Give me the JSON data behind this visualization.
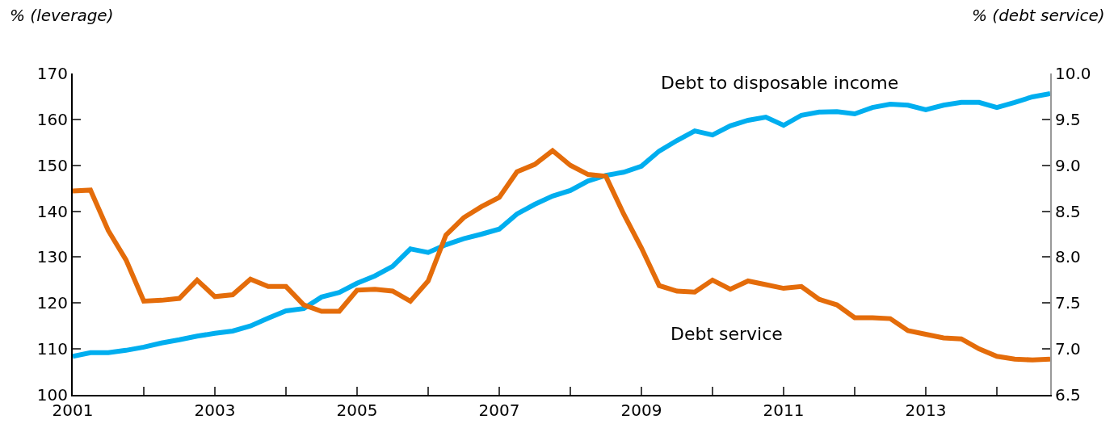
{
  "chart_data": {
    "type": "line",
    "ylabel": "% (leverage)",
    "y2label": "% (debt service)",
    "x": [
      2001,
      2001.25,
      2001.5,
      2001.75,
      2002,
      2002.25,
      2002.5,
      2002.75,
      2003,
      2003.25,
      2003.5,
      2003.75,
      2004,
      2004.25,
      2004.5,
      2004.75,
      2005,
      2005.25,
      2005.5,
      2005.75,
      2006,
      2006.25,
      2006.5,
      2006.75,
      2007,
      2007.25,
      2007.5,
      2007.75,
      2008,
      2008.25,
      2008.5,
      2008.75,
      2009,
      2009.25,
      2009.5,
      2009.75,
      2010,
      2010.25,
      2010.5,
      2010.75,
      2011,
      2011.25,
      2011.5,
      2011.75,
      2012,
      2012.25,
      2012.5,
      2012.75,
      2013,
      2013.25,
      2013.5,
      2013.75,
      2014,
      2014.25,
      2014.5,
      2014.75
    ],
    "series": [
      {
        "name": "Debt to disposable income",
        "color": "#00aeef",
        "values": [
          108.4,
          109.2,
          109.2,
          109.7,
          110.4,
          111.3,
          112.0,
          112.8,
          113.4,
          113.9,
          115.0,
          116.7,
          118.3,
          118.8,
          121.3,
          122.3,
          124.3,
          125.9,
          128.0,
          131.8,
          131.0,
          132.7,
          134.0,
          135.0,
          136.1,
          139.4,
          141.5,
          143.3,
          144.5,
          146.6,
          147.8,
          148.5,
          149.8,
          153.1,
          155.4,
          157.5,
          156.6,
          158.6,
          159.8,
          160.5,
          158.7,
          160.9,
          161.6,
          161.7,
          161.2,
          162.6,
          163.3,
          163.1,
          162.1,
          163.1,
          163.7,
          163.7,
          162.6,
          163.7,
          164.9,
          165.6
        ]
      },
      {
        "name": "Debt service",
        "color": "#e46c0a",
        "axis": "y2",
        "values": [
          8.72,
          8.73,
          8.29,
          7.97,
          7.52,
          7.53,
          7.55,
          7.75,
          7.57,
          7.59,
          7.76,
          7.68,
          7.68,
          7.48,
          7.41,
          7.41,
          7.64,
          7.65,
          7.63,
          7.52,
          7.74,
          8.24,
          8.43,
          8.55,
          8.65,
          8.93,
          9.01,
          9.16,
          9.0,
          8.9,
          8.88,
          8.47,
          8.1,
          7.69,
          7.63,
          7.62,
          7.75,
          7.65,
          7.74,
          7.7,
          7.66,
          7.68,
          7.54,
          7.48,
          7.34,
          7.34,
          7.33,
          7.2,
          7.16,
          7.12,
          7.11,
          7.0,
          6.92,
          6.89,
          6.88,
          6.89
        ]
      }
    ],
    "xlim": [
      2001,
      2014.75
    ],
    "xticks": [
      2001,
      {
        "value": 2002,
        "label": null
      },
      2003,
      {
        "value": 2004,
        "label": null
      },
      2005,
      {
        "value": 2006,
        "label": null
      },
      2007,
      {
        "value": 2008,
        "label": null
      },
      2009,
      {
        "value": 2010,
        "label": null
      },
      2011,
      {
        "value": 2012,
        "label": null
      },
      2013,
      {
        "value": 2014,
        "label": null
      }
    ],
    "ylim": [
      100,
      170
    ],
    "yticks": [
      100,
      110,
      120,
      130,
      140,
      150,
      160,
      170
    ],
    "y2lim": [
      6.5,
      10.0
    ],
    "y2ticks": [
      {
        "value": 6.5,
        "label": "6.5"
      },
      {
        "value": 7.0,
        "label": "7.0"
      },
      {
        "value": 7.5,
        "label": "7.5"
      },
      {
        "value": 8.0,
        "label": "8.0"
      },
      {
        "value": 8.5,
        "label": "8.5"
      },
      {
        "value": 9.0,
        "label": "9.0"
      },
      {
        "value": 9.5,
        "label": "9.5"
      },
      {
        "value": 10.0,
        "label": "10.0"
      }
    ],
    "legend": false,
    "marker": "none",
    "line_style": "solid"
  }
}
